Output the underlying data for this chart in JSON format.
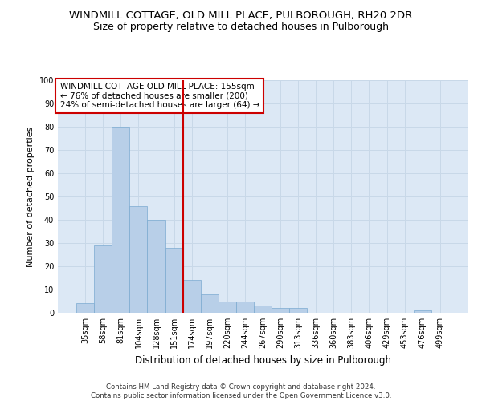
{
  "title": "WINDMILL COTTAGE, OLD MILL PLACE, PULBOROUGH, RH20 2DR",
  "subtitle": "Size of property relative to detached houses in Pulborough",
  "xlabel": "Distribution of detached houses by size in Pulborough",
  "ylabel": "Number of detached properties",
  "categories": [
    "35sqm",
    "58sqm",
    "81sqm",
    "104sqm",
    "128sqm",
    "151sqm",
    "174sqm",
    "197sqm",
    "220sqm",
    "244sqm",
    "267sqm",
    "290sqm",
    "313sqm",
    "336sqm",
    "360sqm",
    "383sqm",
    "406sqm",
    "429sqm",
    "453sqm",
    "476sqm",
    "499sqm"
  ],
  "values": [
    4,
    29,
    80,
    46,
    40,
    28,
    14,
    8,
    5,
    5,
    3,
    2,
    2,
    0,
    0,
    0,
    0,
    0,
    0,
    1,
    0
  ],
  "bar_color": "#b8cfe8",
  "bar_edge_color": "#7aaad0",
  "vline_position": 5.5,
  "vline_color": "#cc0000",
  "annotation_text": "WINDMILL COTTAGE OLD MILL PLACE: 155sqm\n← 76% of detached houses are smaller (200)\n24% of semi-detached houses are larger (64) →",
  "annotation_box_color": "white",
  "annotation_box_edge": "#cc0000",
  "grid_color": "#c8d8e8",
  "bg_color": "#dce8f5",
  "footer": "Contains HM Land Registry data © Crown copyright and database right 2024.\nContains public sector information licensed under the Open Government Licence v3.0.",
  "ylim": [
    0,
    100
  ],
  "yticks": [
    0,
    10,
    20,
    30,
    40,
    50,
    60,
    70,
    80,
    90,
    100
  ],
  "title_fontsize": 9.5,
  "subtitle_fontsize": 9,
  "tick_fontsize": 7,
  "ylabel_fontsize": 8,
  "xlabel_fontsize": 8.5,
  "annotation_fontsize": 7.5
}
